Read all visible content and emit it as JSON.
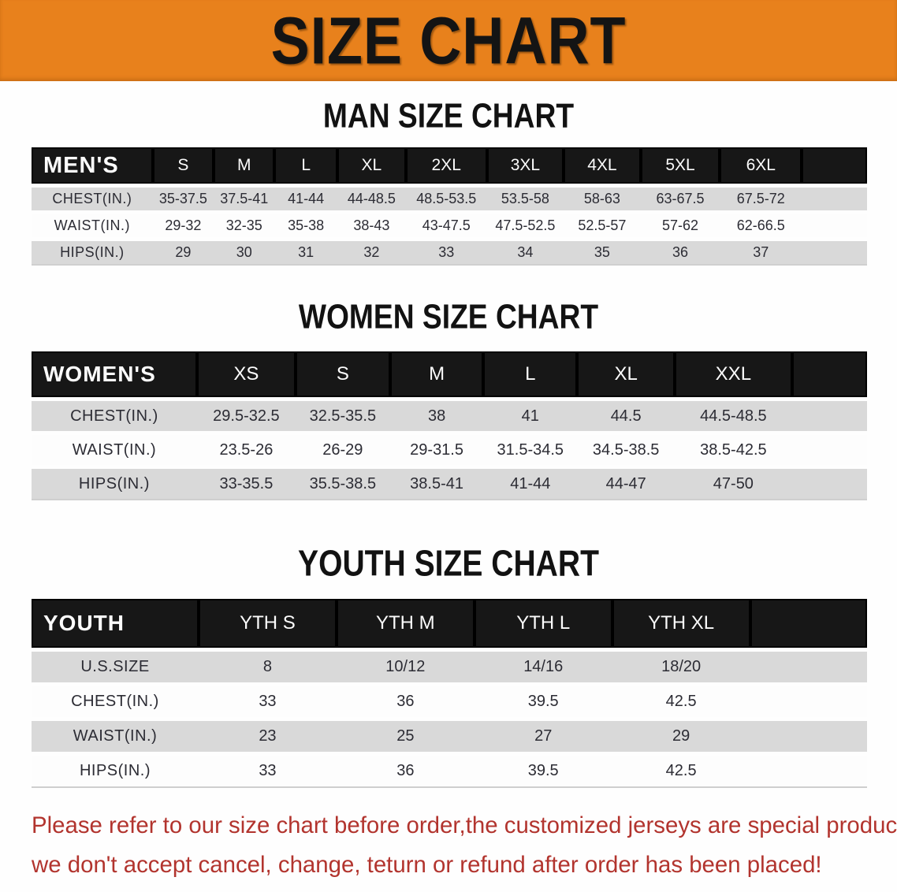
{
  "banner": {
    "title": "SIZE CHART"
  },
  "colors": {
    "banner_bg": "#e8811c",
    "header_bg": "#171717",
    "stripe": "#d9d9d9",
    "footer_text": "#b2342e"
  },
  "sections": [
    {
      "id": "men",
      "heading": "MAN SIZE CHART",
      "table": {
        "corner_label": "MEN'S",
        "columns": [
          "S",
          "M",
          "L",
          "XL",
          "2XL",
          "3XL",
          "4XL",
          "5XL",
          "6XL"
        ],
        "rows": [
          {
            "label": "CHEST(IN.)",
            "values": [
              "35-37.5",
              "37.5-41",
              "41-44",
              "44-48.5",
              "48.5-53.5",
              "53.5-58",
              "58-63",
              "63-67.5",
              "67.5-72"
            ]
          },
          {
            "label": "WAIST(IN.)",
            "values": [
              "29-32",
              "32-35",
              "35-38",
              "38-43",
              "43-47.5",
              "47.5-52.5",
              "52.5-57",
              "57-62",
              "62-66.5"
            ]
          },
          {
            "label": "HIPS(IN.)",
            "values": [
              "29",
              "30",
              "31",
              "32",
              "33",
              "34",
              "35",
              "36",
              "37"
            ]
          }
        ]
      }
    },
    {
      "id": "women",
      "heading": "WOMEN SIZE CHART",
      "table": {
        "corner_label": "WOMEN'S",
        "columns": [
          "XS",
          "S",
          "M",
          "L",
          "XL",
          "XXL"
        ],
        "rows": [
          {
            "label": "CHEST(IN.)",
            "values": [
              "29.5-32.5",
              "32.5-35.5",
              "38",
              "41",
              "44.5",
              "44.5-48.5"
            ]
          },
          {
            "label": "WAIST(IN.)",
            "values": [
              "23.5-26",
              "26-29",
              "29-31.5",
              "31.5-34.5",
              "34.5-38.5",
              "38.5-42.5"
            ]
          },
          {
            "label": "HIPS(IN.)",
            "values": [
              "33-35.5",
              "35.5-38.5",
              "38.5-41",
              "41-44",
              "44-47",
              "47-50"
            ]
          }
        ]
      }
    },
    {
      "id": "youth",
      "heading": "YOUTH SIZE CHART",
      "table": {
        "corner_label": "YOUTH",
        "columns": [
          "YTH S",
          "YTH M",
          "YTH L",
          "YTH XL"
        ],
        "rows": [
          {
            "label": "U.S.SIZE",
            "values": [
              "8",
              "10/12",
              "14/16",
              "18/20"
            ]
          },
          {
            "label": "CHEST(IN.)",
            "values": [
              "33",
              "36",
              "39.5",
              "42.5"
            ]
          },
          {
            "label": "WAIST(IN.)",
            "values": [
              "23",
              "25",
              "27",
              "29"
            ]
          },
          {
            "label": "HIPS(IN.)",
            "values": [
              "33",
              "36",
              "39.5",
              "42.5"
            ]
          }
        ]
      }
    }
  ],
  "footer": {
    "line1": "Please refer to our size chart before order,the customized jerseys are special products,",
    "line2": "we don't accept cancel, change, teturn or refund after order has been placed!"
  }
}
